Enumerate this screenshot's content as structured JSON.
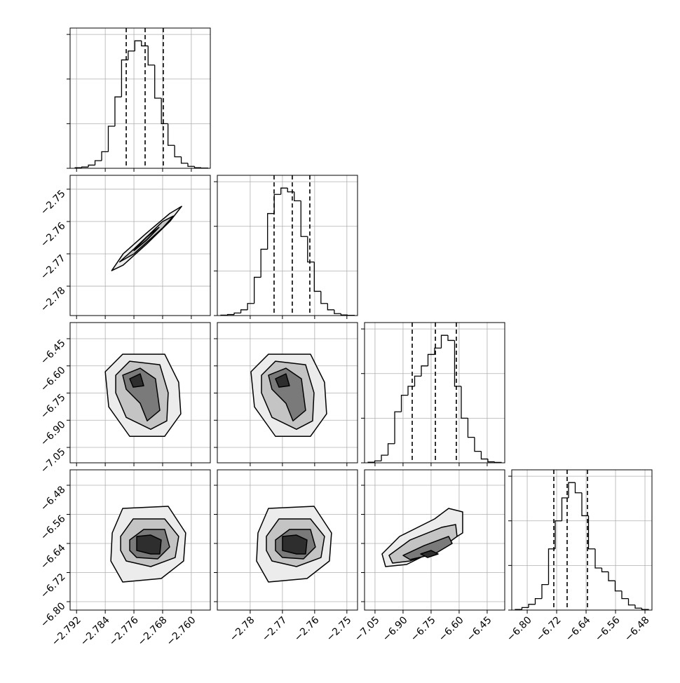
{
  "chart_data": [
    {
      "type": "histogram",
      "color": "#000000",
      "grid": true,
      "show_xtick_labels": false,
      "show_ytick_labels": false,
      "xlim": [
        -2.7938,
        -2.7547
      ],
      "xticks": [
        -2.792,
        -2.784,
        -2.776,
        -2.768,
        -2.76
      ],
      "ylim": [
        0,
        1100
      ],
      "yticks": [
        0,
        350,
        700,
        1050
      ],
      "bins": [
        -2.7924,
        -2.79055,
        -2.7887,
        -2.78685,
        -2.785,
        -2.78315,
        -2.7813,
        -2.77945,
        -2.7776,
        -2.77575,
        -2.7739,
        -2.77205,
        -2.7702,
        -2.76835,
        -2.7665,
        -2.76465,
        -2.7628,
        -2.76095,
        -2.7591,
        -2.75725,
        -2.7554
      ],
      "counts": [
        5,
        10,
        25,
        60,
        130,
        330,
        560,
        850,
        920,
        1000,
        960,
        810,
        550,
        350,
        180,
        90,
        40,
        15,
        5,
        2
      ],
      "quantiles": [
        -2.77815,
        -2.77288,
        -2.76781
      ]
    },
    {
      "type": "contour",
      "color": "#000000",
      "grid": true,
      "show_xtick_labels": false,
      "show_ytick_labels": true,
      "xlim": [
        -2.7938,
        -2.7547
      ],
      "xticks": [
        -2.792,
        -2.784,
        -2.776,
        -2.768,
        -2.76
      ],
      "ylim": [
        -2.7891,
        -2.7457
      ],
      "yticks": [
        {
          "value": -2.78,
          "label": "−2.78"
        },
        {
          "value": -2.77,
          "label": "−2.77"
        },
        {
          "value": -2.76,
          "label": "−2.76"
        },
        {
          "value": -2.75,
          "label": "−2.75"
        }
      ],
      "contours": [
        {
          "x": [
            -2.7822,
            -2.779,
            -2.7725,
            -2.766,
            -2.7627,
            -2.766,
            -2.7725,
            -2.779
          ],
          "y": [
            -2.7752,
            -2.7735,
            -2.767,
            -2.76,
            -2.7553,
            -2.7575,
            -2.7636,
            -2.77
          ]
        },
        {
          "x": [
            -2.78,
            -2.776,
            -2.772,
            -2.768,
            -2.765,
            -2.768,
            -2.772,
            -2.776
          ],
          "y": [
            -2.7725,
            -2.77,
            -2.766,
            -2.762,
            -2.7583,
            -2.76,
            -2.7643,
            -2.7685
          ]
        },
        {
          "x": [
            -2.776,
            -2.7725,
            -2.769,
            -2.7725
          ],
          "y": [
            -2.769,
            -2.7658,
            -2.7618,
            -2.7648
          ]
        }
      ]
    },
    {
      "type": "histogram",
      "color": "#000000",
      "grid": true,
      "show_xtick_labels": false,
      "show_ytick_labels": false,
      "xlim": [
        -2.7902,
        -2.7467
      ],
      "xticks": [
        -2.78,
        -2.77,
        -2.76,
        -2.75
      ],
      "ylim": [
        0,
        1100
      ],
      "yticks": [
        0,
        350,
        700,
        1050
      ],
      "bins": [
        -2.7891,
        -2.78703,
        -2.78496,
        -2.78289,
        -2.78082,
        -2.77875,
        -2.77668,
        -2.77461,
        -2.77254,
        -2.77047,
        -2.7684,
        -2.76633,
        -2.76426,
        -2.76219,
        -2.76012,
        -2.75805,
        -2.75598,
        -2.75391,
        -2.75184,
        -2.74977,
        -2.7477
      ],
      "counts": [
        3,
        8,
        20,
        45,
        95,
        300,
        520,
        800,
        950,
        1000,
        970,
        900,
        620,
        420,
        190,
        95,
        45,
        15,
        5,
        2
      ],
      "quantiles": [
        -2.77259,
        -2.76694,
        -2.7615
      ]
    },
    {
      "type": "contour",
      "color": "#000000",
      "grid": true,
      "show_xtick_labels": false,
      "show_ytick_labels": true,
      "xlim": [
        -2.7938,
        -2.7547
      ],
      "xticks": [
        -2.792,
        -2.784,
        -2.776,
        -2.768,
        -2.76
      ],
      "ylim": [
        -7.135,
        -6.361
      ],
      "yticks": [
        {
          "value": -7.05,
          "label": "−7.05"
        },
        {
          "value": -6.9,
          "label": "−6.90"
        },
        {
          "value": -6.75,
          "label": "−6.75"
        },
        {
          "value": -6.6,
          "label": "−6.60"
        },
        {
          "value": -6.45,
          "label": "−6.45"
        }
      ],
      "contours": [
        {
          "x": [
            -2.784,
            -2.77913,
            -2.76742,
            -2.76352,
            -2.76293,
            -2.76742,
            -2.77718,
            -2.78303
          ],
          "y": [
            -6.6323,
            -6.5354,
            -6.5354,
            -6.6905,
            -6.8649,
            -6.9889,
            -6.9889,
            -6.8261
          ]
        },
        {
          "x": [
            -2.78108,
            -2.77718,
            -2.76878,
            -2.76644,
            -2.76683,
            -2.77132,
            -2.77815,
            -2.78108
          ],
          "y": [
            -6.6517,
            -6.5742,
            -6.5936,
            -6.7486,
            -6.9036,
            -6.9501,
            -6.8843,
            -6.7486
          ]
        },
        {
          "x": [
            -2.77913,
            -2.77425,
            -2.77,
            -2.76878,
            -2.7723,
            -2.77425,
            -2.77815
          ],
          "y": [
            -6.6517,
            -6.6129,
            -6.6711,
            -6.8455,
            -6.9036,
            -6.8067,
            -6.7292
          ]
        },
        {
          "x": [
            -2.77718,
            -2.77425,
            -2.77327,
            -2.7762
          ],
          "y": [
            -6.6711,
            -6.6439,
            -6.7098,
            -6.7176
          ]
        }
      ]
    },
    {
      "type": "contour",
      "color": "#000000",
      "grid": true,
      "show_xtick_labels": false,
      "show_ytick_labels": false,
      "xlim": [
        -2.7902,
        -2.7467
      ],
      "xticks": [
        -2.78,
        -2.77,
        -2.76,
        -2.75
      ],
      "ylim": [
        -7.135,
        -6.361
      ],
      "yticks": [
        -7.05,
        -6.9,
        -6.75,
        -6.6,
        -6.45
      ],
      "contours": [
        {
          "x": [
            -2.77977,
            -2.77433,
            -2.76129,
            -2.75694,
            -2.75629,
            -2.76129,
            -2.77216,
            -2.77868
          ],
          "y": [
            -6.6323,
            -6.5354,
            -6.5354,
            -6.6905,
            -6.8649,
            -6.9889,
            -6.9889,
            -6.8261
          ]
        },
        {
          "x": [
            -2.7765,
            -2.77216,
            -2.76281,
            -2.7602,
            -2.76064,
            -2.76564,
            -2.77324,
            -2.7765
          ],
          "y": [
            -6.6517,
            -6.5742,
            -6.5936,
            -6.7486,
            -6.9036,
            -6.9501,
            -6.8843,
            -6.7486
          ]
        },
        {
          "x": [
            -2.77433,
            -2.7689,
            -2.76411,
            -2.76281,
            -2.76672,
            -2.7689,
            -2.77324
          ],
          "y": [
            -6.6517,
            -6.6129,
            -6.6711,
            -6.8455,
            -6.9036,
            -6.8067,
            -6.7292
          ]
        },
        {
          "x": [
            -2.77216,
            -2.7689,
            -2.76781,
            -2.77107
          ],
          "y": [
            -6.6711,
            -6.6439,
            -6.7098,
            -6.7176
          ]
        }
      ]
    },
    {
      "type": "histogram",
      "color": "#000000",
      "grid": true,
      "show_xtick_labels": false,
      "show_ytick_labels": false,
      "xlim": [
        -7.106,
        -6.356
      ],
      "xticks": [
        -7.05,
        -6.9,
        -6.75,
        -6.6,
        -6.45
      ],
      "ylim": [
        0,
        1100
      ],
      "yticks": [
        0,
        350,
        700,
        1050
      ],
      "bins": [
        -7.087,
        -7.0514,
        -7.0158,
        -6.9802,
        -6.9446,
        -6.909,
        -6.8734,
        -6.8378,
        -6.8022,
        -6.7666,
        -6.731,
        -6.6954,
        -6.6598,
        -6.6242,
        -6.5886,
        -6.553,
        -6.5174,
        -6.4818,
        -6.4462,
        -6.4106,
        -6.375
      ],
      "counts": [
        5,
        15,
        60,
        150,
        400,
        530,
        600,
        680,
        760,
        850,
        900,
        1000,
        960,
        600,
        350,
        200,
        90,
        30,
        8,
        3
      ],
      "quantiles": [
        -6.851,
        -6.727,
        -6.615
      ]
    },
    {
      "type": "contour",
      "color": "#000000",
      "grid": true,
      "show_xtick_labels": true,
      "show_ytick_labels": true,
      "xlim": [
        -2.7938,
        -2.7547
      ],
      "xticks": [
        {
          "value": -2.792,
          "label": "−2.792"
        },
        {
          "value": -2.784,
          "label": "−2.784"
        },
        {
          "value": -2.776,
          "label": "−2.776"
        },
        {
          "value": -2.768,
          "label": "−2.768"
        },
        {
          "value": -2.76,
          "label": "−2.760"
        }
      ],
      "ylim": [
        -6.8231,
        -6.4376
      ],
      "yticks": [
        {
          "value": -6.8,
          "label": "−6.80"
        },
        {
          "value": -6.72,
          "label": "−6.72"
        },
        {
          "value": -6.64,
          "label": "−6.64"
        },
        {
          "value": -6.56,
          "label": "−6.56"
        },
        {
          "value": -6.48,
          "label": "−6.48"
        }
      ],
      "contours": [
        {
          "x": [
            -2.78205,
            -2.77913,
            -2.76644,
            -2.76157,
            -2.76215,
            -2.76839,
            -2.77913,
            -2.78244
          ],
          "y": [
            -6.6111,
            -6.5436,
            -6.5378,
            -6.6111,
            -6.6882,
            -6.7364,
            -6.746,
            -6.6882
          ]
        },
        {
          "x": [
            -2.77971,
            -2.7762,
            -2.76742,
            -2.76352,
            -2.76449,
            -2.77132,
            -2.77815,
            -2.77971
          ],
          "y": [
            -6.6207,
            -6.5725,
            -6.5725,
            -6.6207,
            -6.6786,
            -6.7036,
            -6.6882,
            -6.6593
          ]
        },
        {
          "x": [
            -2.77718,
            -2.77327,
            -2.76742,
            -2.76605,
            -2.76937,
            -2.77522,
            -2.77718
          ],
          "y": [
            -6.6304,
            -6.6015,
            -6.6015,
            -6.6497,
            -6.6824,
            -6.6786,
            -6.6593
          ]
        },
        {
          "x": [
            -2.77522,
            -2.77132,
            -2.76839,
            -2.76878,
            -2.77132,
            -2.77522
          ],
          "y": [
            -6.6207,
            -6.6169,
            -6.6304,
            -6.6689,
            -6.6689,
            -6.6593
          ]
        }
      ]
    },
    {
      "type": "contour",
      "color": "#000000",
      "grid": true,
      "show_xtick_labels": true,
      "show_ytick_labels": false,
      "xlim": [
        -2.7902,
        -2.7467
      ],
      "xticks": [
        {
          "value": -2.78,
          "label": "−2.78"
        },
        {
          "value": -2.77,
          "label": "−2.77"
        },
        {
          "value": -2.76,
          "label": "−2.76"
        },
        {
          "value": -2.75,
          "label": "−2.75"
        }
      ],
      "ylim": [
        -6.8231,
        -6.4376
      ],
      "yticks": [
        -6.8,
        -6.72,
        -6.64,
        -6.56,
        -6.48
      ],
      "contours": [
        {
          "x": [
            -2.77759,
            -2.77433,
            -2.7602,
            -2.75477,
            -2.75542,
            -2.76237,
            -2.77433,
            -2.77803
          ],
          "y": [
            -6.6111,
            -6.5436,
            -6.5378,
            -6.6111,
            -6.6882,
            -6.7364,
            -6.746,
            -6.6882
          ]
        },
        {
          "x": [
            -2.77498,
            -2.77107,
            -2.76129,
            -2.75694,
            -2.75803,
            -2.76564,
            -2.77324,
            -2.77498
          ],
          "y": [
            -6.6207,
            -6.5725,
            -6.5725,
            -6.6207,
            -6.6786,
            -6.7036,
            -6.6882,
            -6.6593
          ]
        },
        {
          "x": [
            -2.77216,
            -2.76781,
            -2.76129,
            -2.75977,
            -2.76346,
            -2.76998,
            -2.77216
          ],
          "y": [
            -6.6304,
            -6.6015,
            -6.6015,
            -6.6497,
            -6.6824,
            -6.6786,
            -6.6593
          ]
        },
        {
          "x": [
            -2.76998,
            -2.76564,
            -2.76237,
            -2.76281,
            -2.76564,
            -2.76998
          ],
          "y": [
            -6.6207,
            -6.6169,
            -6.6304,
            -6.6689,
            -6.6689,
            -6.6593
          ]
        }
      ]
    },
    {
      "type": "contour",
      "color": "#000000",
      "grid": true,
      "show_xtick_labels": true,
      "show_ytick_labels": false,
      "xlim": [
        -7.106,
        -6.356
      ],
      "xticks": [
        {
          "value": -7.05,
          "label": "−7.05"
        },
        {
          "value": -6.9,
          "label": "−6.90"
        },
        {
          "value": -6.75,
          "label": "−6.75"
        },
        {
          "value": -6.6,
          "label": "−6.60"
        },
        {
          "value": -6.45,
          "label": "−6.45"
        }
      ],
      "ylim": [
        -6.8231,
        -6.4376
      ],
      "yticks": [
        -6.8,
        -6.72,
        -6.64,
        -6.56,
        -6.48
      ],
      "contours": [
        {
          "x": [
            -7.0123,
            -6.9185,
            -6.7311,
            -6.6561,
            -6.5811,
            -6.5811,
            -6.7311,
            -6.881,
            -6.9935
          ],
          "y": [
            -6.6689,
            -6.6207,
            -6.5725,
            -6.5436,
            -6.5533,
            -6.6111,
            -6.6593,
            -6.6978,
            -6.7036
          ]
        },
        {
          "x": [
            -6.9748,
            -6.8623,
            -6.6936,
            -6.6186,
            -6.6111,
            -6.7123,
            -6.8623,
            -6.956
          ],
          "y": [
            -6.6728,
            -6.6304,
            -6.5957,
            -6.588,
            -6.6207,
            -6.6593,
            -6.6882,
            -6.694
          ]
        },
        {
          "x": [
            -6.8998,
            -6.7873,
            -6.6561,
            -6.6373,
            -6.7311,
            -6.8623
          ],
          "y": [
            -6.6728,
            -6.6458,
            -6.6207,
            -6.64,
            -6.6689,
            -6.6844
          ]
        },
        {
          "x": [
            -6.806,
            -6.7498,
            -6.7123,
            -6.7685
          ],
          "y": [
            -6.6689,
            -6.6593,
            -6.6689,
            -6.6786
          ]
        }
      ]
    },
    {
      "type": "histogram",
      "color": "#000000",
      "grid": true,
      "show_xtick_labels": true,
      "show_ytick_labels": false,
      "xlim": [
        -6.842,
        -6.461
      ],
      "xticks": [
        {
          "value": -6.8,
          "label": "−6.80"
        },
        {
          "value": -6.72,
          "label": "−6.72"
        },
        {
          "value": -6.64,
          "label": "−6.64"
        },
        {
          "value": -6.56,
          "label": "−6.56"
        },
        {
          "value": -6.48,
          "label": "−6.48"
        }
      ],
      "ylim": [
        0,
        1100
      ],
      "yticks": [
        0,
        350,
        700,
        1050
      ],
      "bins": [
        -6.8325,
        -6.8144,
        -6.7963,
        -6.7782,
        -6.7601,
        -6.742,
        -6.7239,
        -6.7058,
        -6.6877,
        -6.6696,
        -6.6515,
        -6.6334,
        -6.6153,
        -6.5972,
        -6.5791,
        -6.561,
        -6.5429,
        -6.5248,
        -6.5067,
        -6.4886,
        -6.4705
      ],
      "counts": [
        5,
        20,
        45,
        90,
        200,
        480,
        700,
        880,
        1000,
        920,
        740,
        480,
        330,
        300,
        230,
        150,
        90,
        40,
        15,
        5
      ],
      "quantiles": [
        -6.7277,
        -6.6915,
        -6.6363
      ]
    }
  ]
}
